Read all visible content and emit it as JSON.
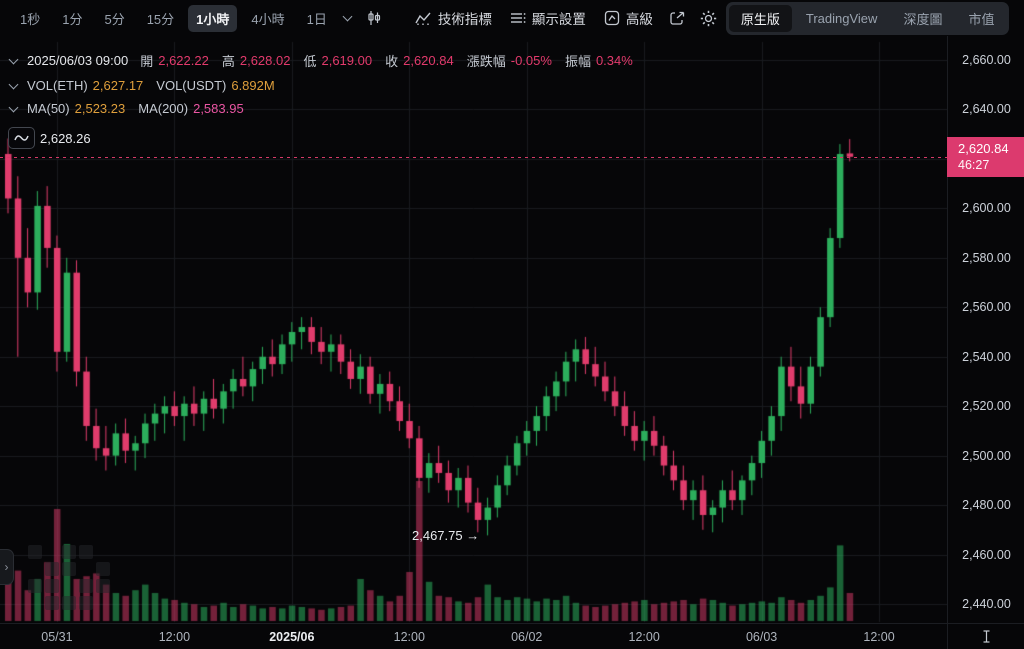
{
  "toolbar": {
    "timeframes": [
      {
        "label": "1秒",
        "active": false
      },
      {
        "label": "1分",
        "active": false
      },
      {
        "label": "5分",
        "active": false
      },
      {
        "label": "15分",
        "active": false
      },
      {
        "label": "1小時",
        "active": true
      },
      {
        "label": "4小時",
        "active": false
      },
      {
        "label": "1日",
        "active": false
      }
    ],
    "indicators_label": "技術指標",
    "display_settings_label": "顯示設置",
    "advanced_label": "高級",
    "view_tabs": [
      {
        "label": "原生版",
        "active": true
      },
      {
        "label": "TradingView",
        "active": false
      },
      {
        "label": "深度圖",
        "active": false
      },
      {
        "label": "市值",
        "active": false
      }
    ]
  },
  "legend": {
    "datetime": "2025/06/03 09:00",
    "fields": [
      {
        "label": "開",
        "value": "2,622.22"
      },
      {
        "label": "高",
        "value": "2,628.02"
      },
      {
        "label": "低",
        "value": "2,619.00"
      },
      {
        "label": "收",
        "value": "2,620.84"
      },
      {
        "label": "漲跌幅",
        "value": "-0.05%"
      },
      {
        "label": "振幅",
        "value": "0.34%"
      }
    ],
    "vol": [
      {
        "label": "VOL(ETH)",
        "value": "2,627.17",
        "color": "#df9f3c"
      },
      {
        "label": "VOL(USDT)",
        "value": "6.892M",
        "color": "#df9f3c"
      }
    ],
    "ma": [
      {
        "label": "MA(50)",
        "value": "2,523.23",
        "color": "#df9f3c"
      },
      {
        "label": "MA(200)",
        "value": "2,583.95",
        "color": "#ea56a3"
      }
    ]
  },
  "annotations": {
    "high_value": "2,628.26",
    "high_price": 2628.26,
    "low_text": "2,467.75 →",
    "low_price": 2467.75
  },
  "price_axis": {
    "labels": [
      {
        "label": "2,660.00",
        "price": 2660
      },
      {
        "label": "2,640.00",
        "price": 2640
      },
      {
        "label": "2,620.00",
        "price": 2620,
        "hidden": true
      },
      {
        "label": "2,600.00",
        "price": 2600
      },
      {
        "label": "2,580.00",
        "price": 2580
      },
      {
        "label": "2,560.00",
        "price": 2560
      },
      {
        "label": "2,540.00",
        "price": 2540
      },
      {
        "label": "2,520.00",
        "price": 2520
      },
      {
        "label": "2,500.00",
        "price": 2500
      },
      {
        "label": "2,480.00",
        "price": 2480
      },
      {
        "label": "2,460.00",
        "price": 2460
      },
      {
        "label": "2,440.00",
        "price": 2440
      }
    ],
    "badge": {
      "price": "2,620.84",
      "countdown": "46:27",
      "color": "#dc3a6e"
    }
  },
  "time_axis": {
    "ticks": [
      {
        "label": "05/31",
        "index": 5,
        "strong": false
      },
      {
        "label": "12:00",
        "index": 17,
        "strong": false
      },
      {
        "label": "2025/06",
        "index": 29,
        "strong": true
      },
      {
        "label": "12:00",
        "index": 41,
        "strong": false
      },
      {
        "label": "06/02",
        "index": 53,
        "strong": false
      },
      {
        "label": "12:00",
        "index": 65,
        "strong": false
      },
      {
        "label": "06/03",
        "index": 77,
        "strong": false
      },
      {
        "label": "12:00",
        "index": 89,
        "strong": false
      }
    ]
  },
  "chart_data": {
    "type": "candlestick",
    "interval": "1小時",
    "title": "ETH/USDT 1小時 K線 (原生版)",
    "current_price": 2620.84,
    "countdown": "46:27",
    "marked_high": 2628.26,
    "marked_low": 2467.75,
    "y_range": [
      2436,
      2668
    ],
    "grid": true,
    "colors": {
      "up": "#2cae5c",
      "down": "#e03c6c",
      "volume_up": "rgba(44,174,92,0.55)",
      "volume_down": "rgba(224,60,108,0.5)",
      "grid": "#191b1f",
      "price_line": "#d63a68"
    },
    "candles_format": [
      "open",
      "high",
      "low",
      "close",
      "relative_volume"
    ],
    "candles": [
      [
        2622,
        2628.26,
        2598,
        2604,
        0.28
      ],
      [
        2604,
        2613,
        2540,
        2580,
        0.36
      ],
      [
        2580,
        2592,
        2560,
        2566,
        0.22
      ],
      [
        2566,
        2607,
        2559,
        2601,
        0.3
      ],
      [
        2601,
        2609,
        2576,
        2584,
        0.42
      ],
      [
        2584,
        2589,
        2534,
        2542,
        0.8
      ],
      [
        2542,
        2580,
        2538,
        2574,
        0.55
      ],
      [
        2574,
        2579,
        2528,
        2534,
        0.3
      ],
      [
        2534,
        2540,
        2506,
        2512,
        0.32
      ],
      [
        2512,
        2519,
        2498,
        2503,
        0.34
      ],
      [
        2503,
        2512,
        2494,
        2500,
        0.26
      ],
      [
        2500,
        2513,
        2496,
        2509,
        0.2
      ],
      [
        2509,
        2515,
        2497,
        2502,
        0.18
      ],
      [
        2502,
        2508,
        2494,
        2505,
        0.22
      ],
      [
        2505,
        2517,
        2499,
        2513,
        0.26
      ],
      [
        2513,
        2521,
        2506,
        2517,
        0.2
      ],
      [
        2517,
        2524,
        2509,
        2520,
        0.16
      ],
      [
        2520,
        2526,
        2512,
        2516,
        0.15
      ],
      [
        2516,
        2524,
        2506,
        2521,
        0.13
      ],
      [
        2521,
        2528,
        2512,
        2517,
        0.12
      ],
      [
        2517,
        2526,
        2510,
        2523,
        0.1
      ],
      [
        2523,
        2531,
        2515,
        2519,
        0.11
      ],
      [
        2519,
        2529,
        2513,
        2526,
        0.13
      ],
      [
        2526,
        2535,
        2519,
        2531,
        0.1
      ],
      [
        2531,
        2540,
        2524,
        2528,
        0.12
      ],
      [
        2528,
        2538,
        2522,
        2535,
        0.11
      ],
      [
        2535,
        2544,
        2529,
        2540,
        0.09
      ],
      [
        2540,
        2547,
        2532,
        2537,
        0.1
      ],
      [
        2537,
        2549,
        2533,
        2545,
        0.09
      ],
      [
        2545,
        2554,
        2538,
        2550,
        0.11
      ],
      [
        2550,
        2556,
        2543,
        2552,
        0.1
      ],
      [
        2552,
        2556,
        2541,
        2546,
        0.09
      ],
      [
        2546,
        2552,
        2537,
        2542,
        0.08
      ],
      [
        2542,
        2549,
        2534,
        2545,
        0.09
      ],
      [
        2545,
        2549,
        2533,
        2538,
        0.1
      ],
      [
        2538,
        2543,
        2527,
        2531,
        0.11
      ],
      [
        2531,
        2541,
        2525,
        2536,
        0.3
      ],
      [
        2536,
        2540,
        2521,
        2525,
        0.22
      ],
      [
        2525,
        2533,
        2517,
        2529,
        0.18
      ],
      [
        2529,
        2534,
        2518,
        2522,
        0.14
      ],
      [
        2522,
        2528,
        2510,
        2514,
        0.18
      ],
      [
        2514,
        2521,
        2503,
        2507,
        0.35
      ],
      [
        2507,
        2512,
        2487,
        2491,
        1.0
      ],
      [
        2491,
        2501,
        2485,
        2497,
        0.28
      ],
      [
        2497,
        2504,
        2489,
        2493,
        0.18
      ],
      [
        2493,
        2498,
        2481,
        2486,
        0.17
      ],
      [
        2486,
        2495,
        2479,
        2491,
        0.14
      ],
      [
        2491,
        2496,
        2477,
        2481,
        0.13
      ],
      [
        2481,
        2487,
        2469,
        2474,
        0.17
      ],
      [
        2474,
        2483,
        2467.75,
        2479,
        0.26
      ],
      [
        2479,
        2492,
        2475,
        2488,
        0.17
      ],
      [
        2488,
        2500,
        2484,
        2496,
        0.15
      ],
      [
        2496,
        2508,
        2492,
        2505,
        0.17
      ],
      [
        2505,
        2514,
        2500,
        2510,
        0.16
      ],
      [
        2510,
        2520,
        2504,
        2516,
        0.14
      ],
      [
        2516,
        2528,
        2510,
        2524,
        0.16
      ],
      [
        2524,
        2534,
        2518,
        2530,
        0.15
      ],
      [
        2530,
        2542,
        2524,
        2538,
        0.18
      ],
      [
        2538,
        2547,
        2530,
        2543,
        0.13
      ],
      [
        2543,
        2548,
        2533,
        2537,
        0.11
      ],
      [
        2537,
        2544,
        2528,
        2532,
        0.1
      ],
      [
        2532,
        2538,
        2522,
        2526,
        0.11
      ],
      [
        2526,
        2532,
        2516,
        2520,
        0.12
      ],
      [
        2520,
        2526,
        2508,
        2512,
        0.13
      ],
      [
        2512,
        2518,
        2502,
        2506,
        0.14
      ],
      [
        2506,
        2514,
        2498,
        2510,
        0.15
      ],
      [
        2510,
        2516,
        2500,
        2504,
        0.12
      ],
      [
        2504,
        2508,
        2492,
        2496,
        0.13
      ],
      [
        2496,
        2502,
        2486,
        2490,
        0.14
      ],
      [
        2490,
        2496,
        2478,
        2482,
        0.15
      ],
      [
        2482,
        2490,
        2474,
        2486,
        0.12
      ],
      [
        2486,
        2492,
        2470,
        2476,
        0.16
      ],
      [
        2476,
        2482,
        2469,
        2479,
        0.15
      ],
      [
        2479,
        2490,
        2473,
        2486,
        0.13
      ],
      [
        2486,
        2494,
        2478,
        2482,
        0.11
      ],
      [
        2482,
        2492,
        2476,
        2490,
        0.12
      ],
      [
        2490,
        2500,
        2484,
        2497,
        0.13
      ],
      [
        2497,
        2510,
        2491,
        2506,
        0.14
      ],
      [
        2506,
        2520,
        2500,
        2516,
        0.13
      ],
      [
        2516,
        2540,
        2510,
        2536,
        0.17
      ],
      [
        2536,
        2544,
        2522,
        2528,
        0.15
      ],
      [
        2528,
        2536,
        2515,
        2521,
        0.13
      ],
      [
        2521,
        2540,
        2517,
        2536,
        0.15
      ],
      [
        2536,
        2560,
        2532,
        2556,
        0.18
      ],
      [
        2556,
        2592,
        2552,
        2588,
        0.24
      ],
      [
        2588,
        2626,
        2584,
        2622,
        0.54
      ],
      [
        2622.22,
        2628.02,
        2619,
        2620.84,
        0.2
      ]
    ]
  }
}
